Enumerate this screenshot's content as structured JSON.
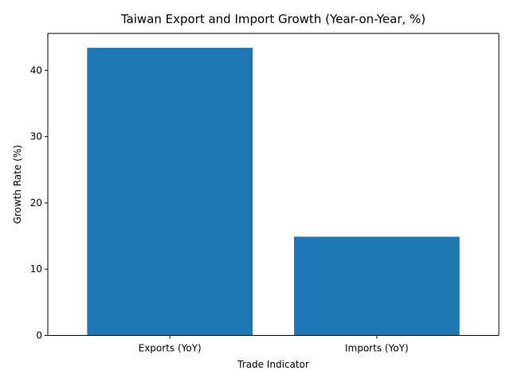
{
  "chart_data": {
    "type": "bar",
    "title": "Taiwan Export and Import Growth (Year-on-Year, %)",
    "xlabel": "Trade Indicator",
    "ylabel": "Growth Rate (%)",
    "categories": [
      "Exports (YoY)",
      "Imports (YoY)"
    ],
    "values": [
      43.4,
      14.9
    ],
    "ylim": [
      0,
      45.57
    ],
    "yticks": [
      0,
      10,
      20,
      30,
      40
    ],
    "grid": false,
    "legend": "none",
    "bar_color": "#1f77b4"
  }
}
